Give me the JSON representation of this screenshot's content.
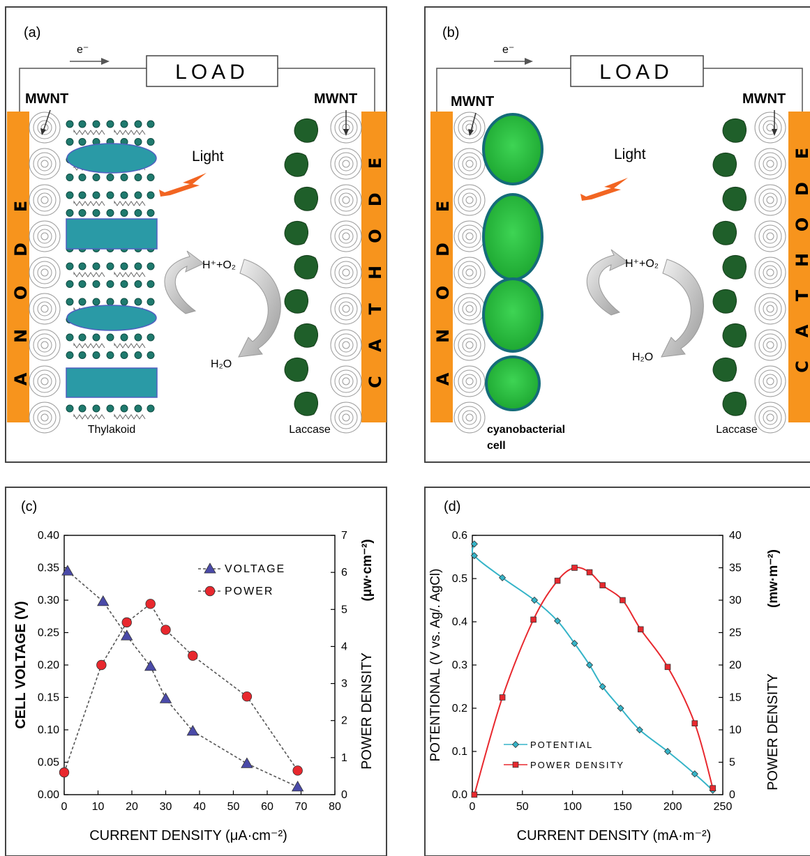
{
  "panels": {
    "a": {
      "tag": "(a)",
      "electron": "e⁻",
      "load": "LOAD",
      "mwnt_left": "MWNT",
      "mwnt_right": "MWNT",
      "anode": [
        "A",
        "N",
        "O",
        "D",
        "E"
      ],
      "cathode": [
        "C",
        "A",
        "T",
        "H",
        "O",
        "D",
        "E"
      ],
      "light": "Light",
      "reaction_top": "H⁺+O₂",
      "reaction_bottom": "H₂O",
      "anode_caption": "Thylakoid",
      "cathode_caption": "Laccase"
    },
    "b": {
      "tag": "(b)",
      "electron": "e⁻",
      "load": "LOAD",
      "mwnt_left": "MWNT",
      "mwnt_right": "MWNT",
      "anode": [
        "A",
        "N",
        "O",
        "D",
        "E"
      ],
      "cathode": [
        "C",
        "A",
        "T",
        "H",
        "O",
        "D",
        "E"
      ],
      "light": "Light",
      "reaction_top": "H⁺+O₂",
      "reaction_bottom": "H₂O",
      "anode_caption_1": "cyanobacterial",
      "anode_caption_2": "cell",
      "cathode_caption": "Laccase"
    },
    "c": {
      "tag": "(c)"
    },
    "d": {
      "tag": "(d)"
    }
  },
  "colors": {
    "electrode": "#f7941d",
    "thylakoid_protein": "#2a9aa6",
    "cyanobacteria_fill": "#22b23a",
    "laccase": "#1f5f2a",
    "light": "#f26522",
    "voltage_series": "#4a4aa8",
    "power_series_c": "#e8282e",
    "potential_series": "#35b4c8",
    "power_series_d": "#e8282e"
  },
  "chart_data": [
    {
      "id": "c",
      "type": "line",
      "xlabel": "CURRENT DENSITY (μA·cm⁻²)",
      "ylabel_left": "CELL VOLTAGE (V)",
      "ylabel_right": "POWER DENSITY",
      "ylabel_right_unit": "(μw·cm⁻²)",
      "xlim": [
        0,
        80
      ],
      "ylim_left": [
        0,
        0.4
      ],
      "ylim_right": [
        0,
        7
      ],
      "xticks": [
        "0",
        "10",
        "20",
        "30",
        "40",
        "50",
        "60",
        "70",
        "80"
      ],
      "yticks_left": [
        "0.00",
        "0.05",
        "0.10",
        "0.15",
        "0.20",
        "0.25",
        "0.30",
        "0.35",
        "0.40"
      ],
      "yticks_right": [
        "0",
        "1",
        "2",
        "3",
        "4",
        "5",
        "6",
        "7"
      ],
      "legend_position": "top-right",
      "series": [
        {
          "name": "VOLTAGE",
          "axis": "left",
          "marker": "triangle",
          "style": "dashed",
          "x": [
            1,
            11.5,
            18.5,
            25.5,
            30,
            38,
            54,
            69
          ],
          "y": [
            0.345,
            0.298,
            0.245,
            0.198,
            0.148,
            0.098,
            0.048,
            0.012
          ]
        },
        {
          "name": "POWER",
          "axis": "right",
          "marker": "circle",
          "style": "dashed",
          "x": [
            0,
            11,
            18.5,
            25.5,
            30,
            38,
            54,
            69
          ],
          "y": [
            0.6,
            3.5,
            4.65,
            5.15,
            4.45,
            3.75,
            2.65,
            0.65
          ]
        }
      ]
    },
    {
      "id": "d",
      "type": "line",
      "xlabel": "CURRENT DENSITY (mA·m⁻²)",
      "ylabel_left": "POTENTIONAL      (V vs. Ag/. AgCl)",
      "ylabel_right": "POWER DENSITY",
      "ylabel_right_unit": "(mw·m⁻²)",
      "xlim": [
        0,
        250
      ],
      "ylim_left": [
        0,
        0.6
      ],
      "ylim_right": [
        0,
        40
      ],
      "xticks": [
        "0",
        "50",
        "100",
        "150",
        "200",
        "250"
      ],
      "yticks_left": [
        "0.0",
        "0.1",
        "0.2",
        "0.3",
        "0.4",
        "0.5",
        "0.6"
      ],
      "yticks_right": [
        "0",
        "5",
        "10",
        "15",
        "20",
        "25",
        "30",
        "35",
        "40"
      ],
      "legend_position": "bottom-left",
      "series": [
        {
          "name": "POTENTIAL",
          "axis": "left",
          "marker": "diamond",
          "style": "solid",
          "x": [
            2,
            2,
            30,
            62,
            85,
            102,
            117,
            130,
            148,
            167,
            195,
            222,
            240
          ],
          "y": [
            0.58,
            0.553,
            0.502,
            0.45,
            0.402,
            0.35,
            0.3,
            0.25,
            0.2,
            0.15,
            0.1,
            0.048,
            0.01
          ]
        },
        {
          "name": "POWER DENSITY",
          "axis": "right",
          "marker": "square",
          "style": "solid",
          "x": [
            2,
            30,
            61,
            85,
            102,
            117,
            130,
            150,
            168,
            195,
            222,
            240
          ],
          "y": [
            0,
            15,
            27,
            33,
            35,
            34.3,
            32.3,
            30,
            25.5,
            19.7,
            11,
            1
          ]
        }
      ]
    }
  ]
}
